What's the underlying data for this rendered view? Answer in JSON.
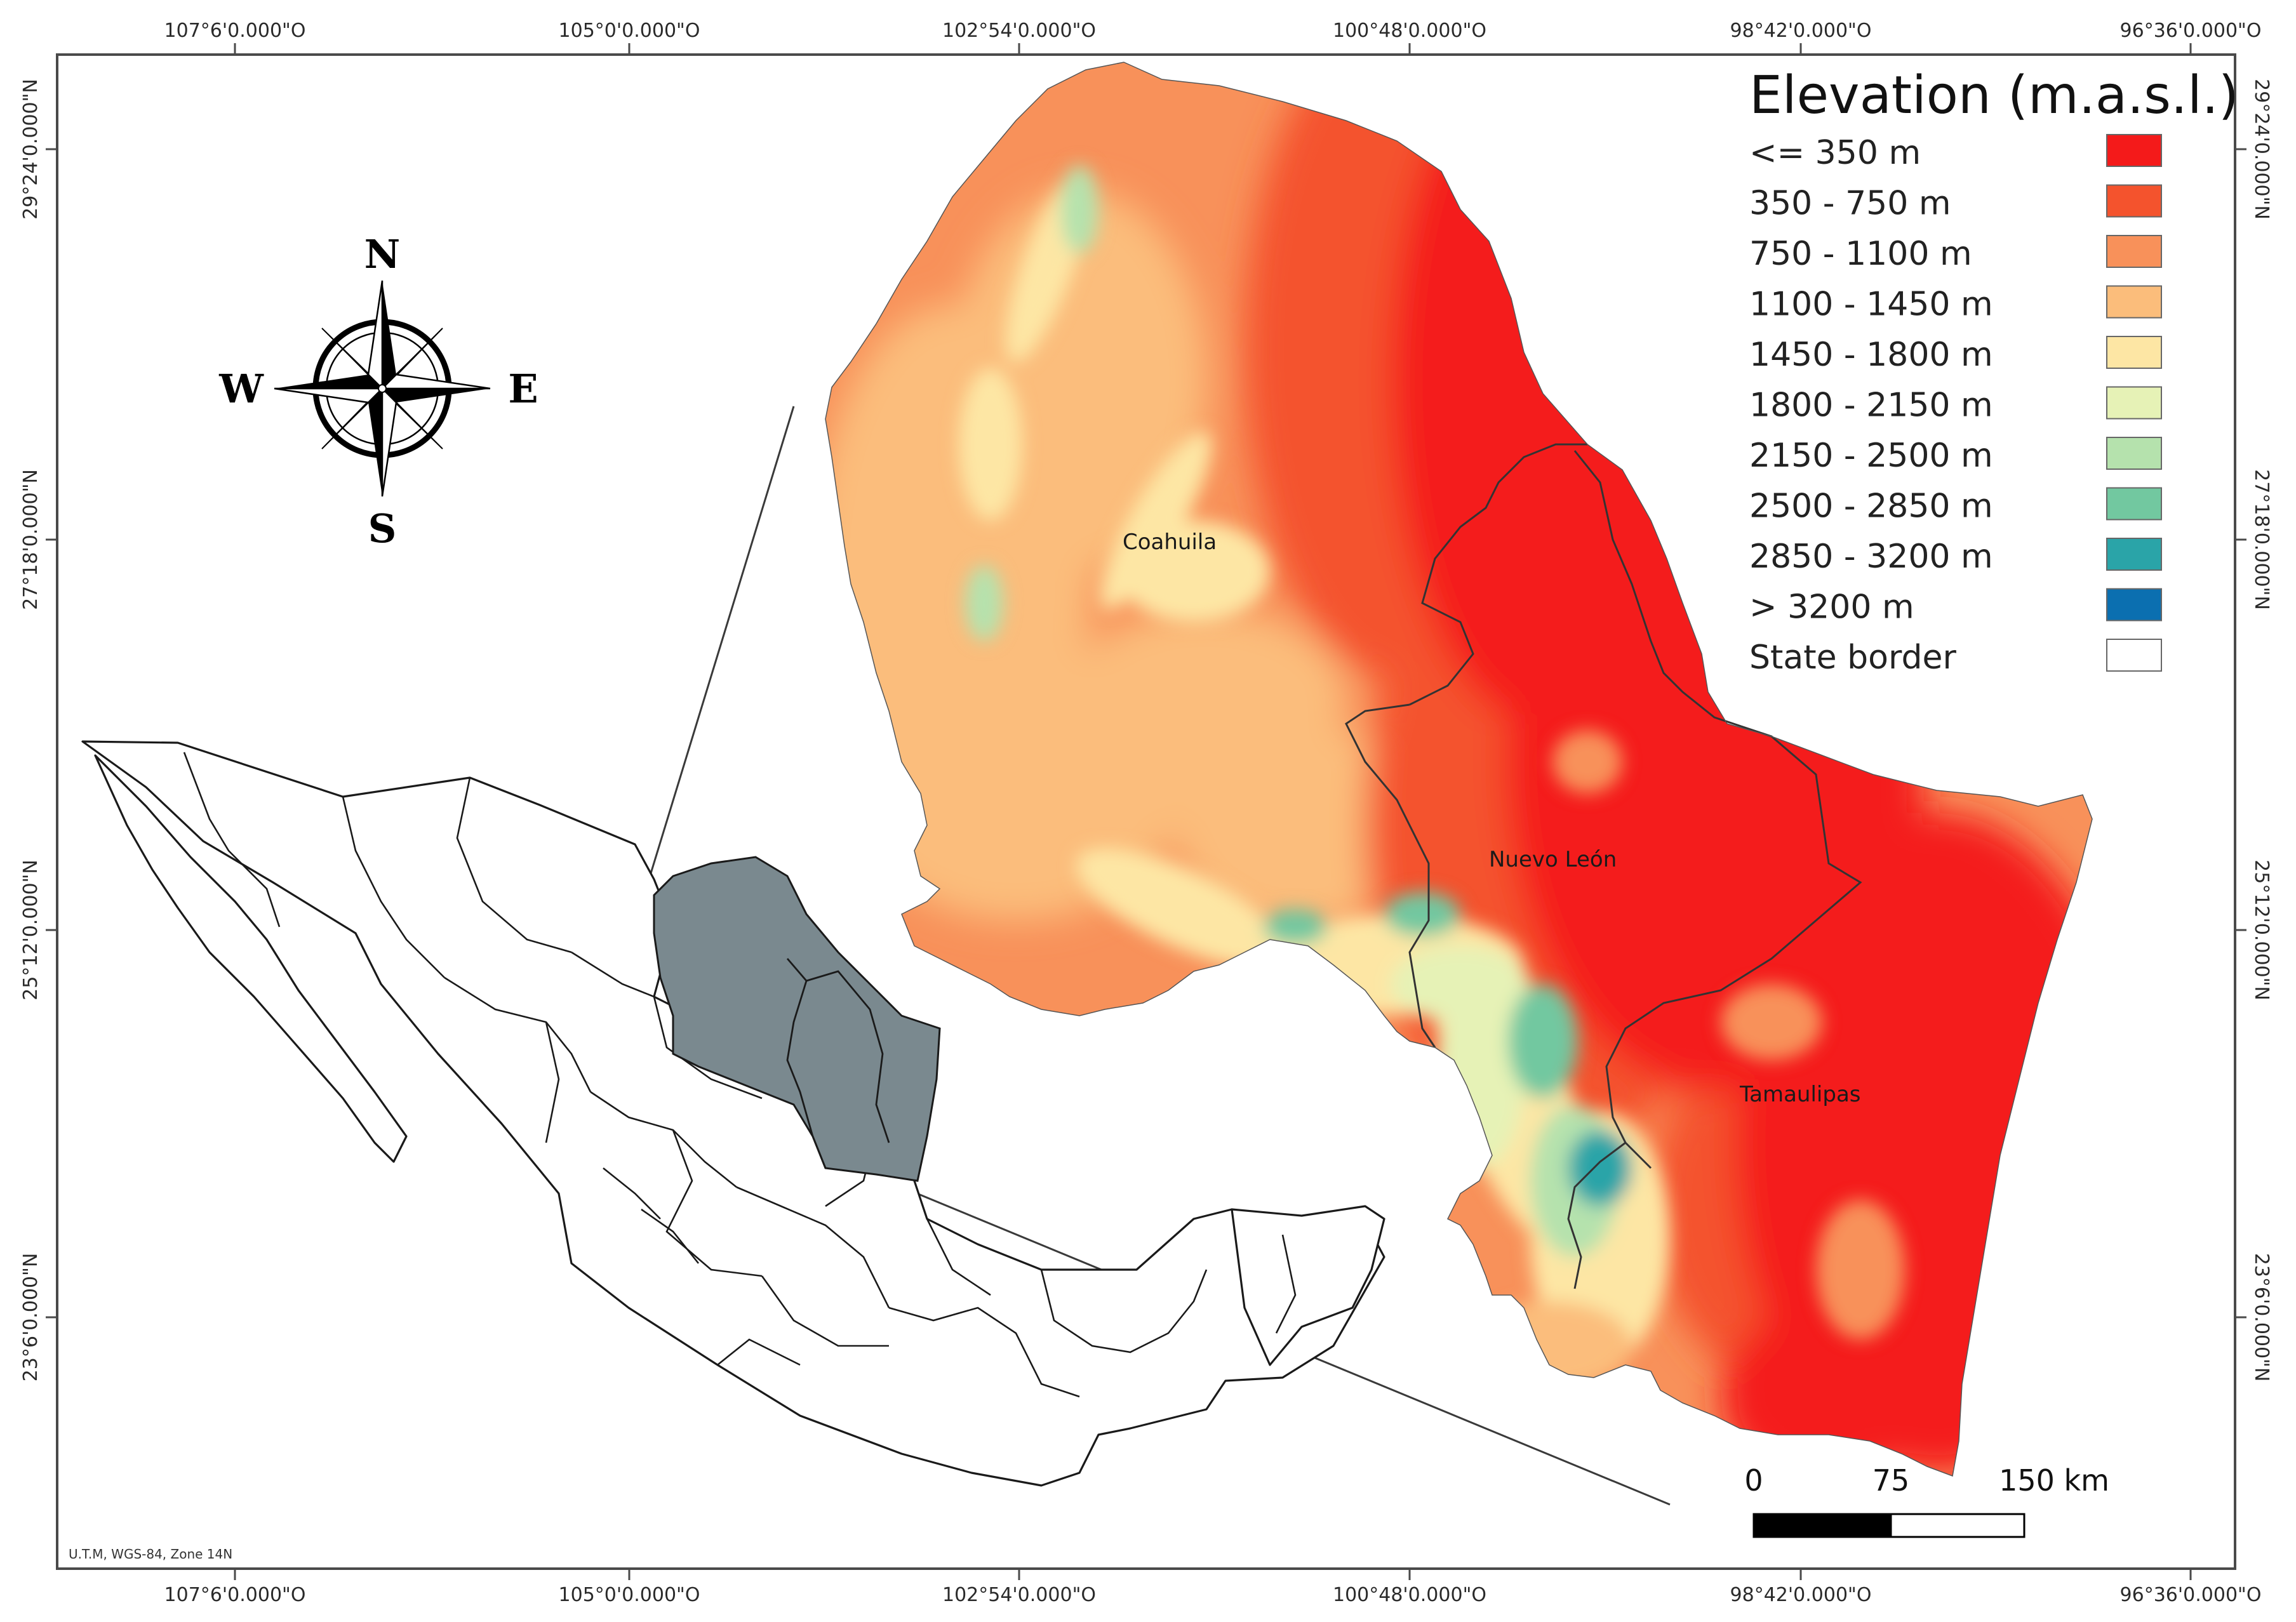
{
  "coordinates": {
    "longitudes": [
      "107°6'0.000\"O",
      "105°0'0.000\"O",
      "102°54'0.000\"O",
      "100°48'0.000\"O",
      "98°42'0.000\"O",
      "96°36'0.000\"O"
    ],
    "latitudes": [
      "29°24'0.000\"N",
      "27°18'0.000\"N",
      "25°12'0.000\"N",
      "23°6'0.000\"N"
    ]
  },
  "legend": {
    "title": "Elevation (m.a.s.l.)",
    "items": [
      {
        "label": "<= 350 m",
        "color": "#f41a1a"
      },
      {
        "label": "350 - 750 m",
        "color": "#f4532d"
      },
      {
        "label": "750 - 1100 m",
        "color": "#f8915a"
      },
      {
        "label": "1100 - 1450 m",
        "color": "#fbbd7b"
      },
      {
        "label": "1450 - 1800 m",
        "color": "#fde6a4"
      },
      {
        "label": "1800 - 2150 m",
        "color": "#e6f2b6"
      },
      {
        "label": "2150 - 2500 m",
        "color": "#b5e2ad"
      },
      {
        "label": "2500 - 2850 m",
        "color": "#72c8a0"
      },
      {
        "label": "2850 - 3200 m",
        "color": "#2aa4a8"
      },
      {
        "label": "> 3200 m",
        "color": "#0b6fb0"
      },
      {
        "label": "State border",
        "color": "#ffffff"
      }
    ]
  },
  "states": {
    "coahuila": "Coahuila",
    "nuevo_leon": "Nuevo León",
    "tamaulipas": "Tamaulipas"
  },
  "compass": {
    "n": "N",
    "s": "S",
    "e": "E",
    "w": "W"
  },
  "scale_bar": {
    "labels": [
      "0",
      "75",
      "150 km"
    ]
  },
  "crs_note": "U.T.M, WGS-84, Zone 14N"
}
